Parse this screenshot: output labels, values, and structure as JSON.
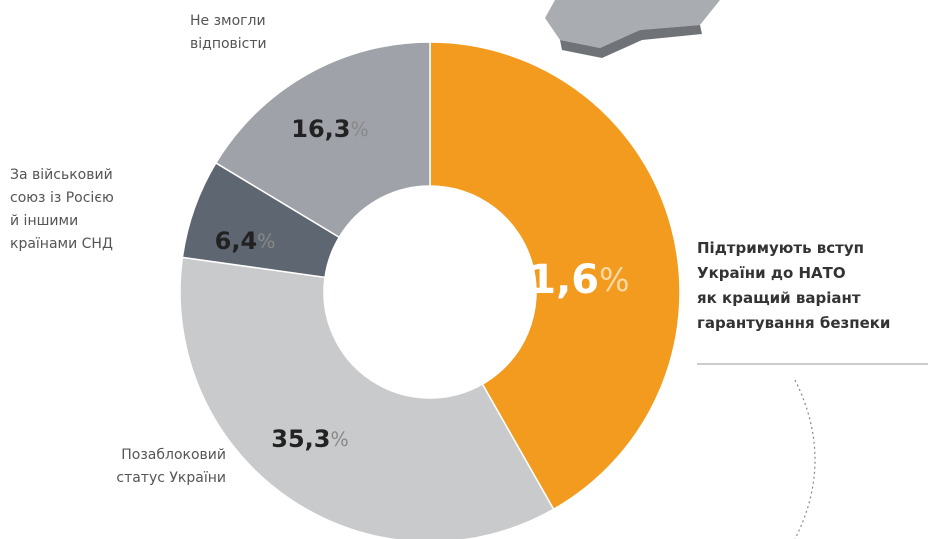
{
  "chart_data": {
    "type": "donut",
    "categories": [
      "Підтримують вступ\nУкраїни до НАТО\nяк кращий варіант\nгарантування безпеки",
      "Позаблоковий\nстатус України",
      "За військовий\nсоюз із Росією\nй іншими\nкраїнами СНД",
      "Не змогли\nвідповісти"
    ],
    "values": [
      41.6,
      35.3,
      6.4,
      16.3
    ],
    "value_labels": [
      "41,6",
      "35,3",
      "6,4",
      "16,3"
    ],
    "unit_label": "%",
    "colors": [
      "#f39b1e",
      "#c9cacc",
      "#5e6671",
      "#9fa3a9"
    ]
  }
}
